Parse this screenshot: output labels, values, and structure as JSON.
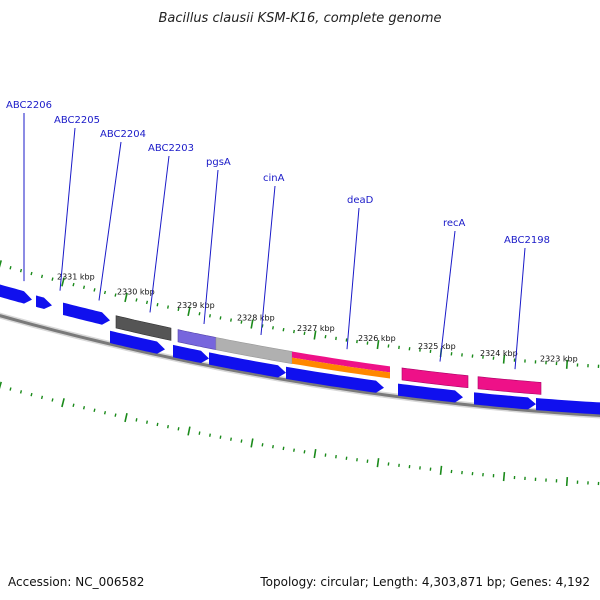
{
  "title": "Bacillus clausii KSM-K16, complete genome",
  "footer": {
    "accession": "Accession: NC_006582",
    "summary": "Topology: circular; Length: 4,303,871 bp; Genes: 4,192"
  },
  "colors": {
    "cds": "#1010ee",
    "backbone": "#7a7a7a",
    "tick": "#1a8a1a",
    "label": "#1a1ac8",
    "dark_gene": "#555555",
    "purple_gene": "#7766dd",
    "grey_gene": "#b0b0b0",
    "pink_gene": "#ee1188",
    "orange_band": "#ff8800"
  },
  "ticks": [
    "2331 kbp",
    "2330 kbp",
    "2329 kbp",
    "2328 kbp",
    "2327 kbp",
    "2326 kbp",
    "2325 kbp",
    "2324 kbp",
    "2323 kbp"
  ],
  "genes": [
    "ABC2206",
    "ABC2205",
    "ABC2204",
    "ABC2203",
    "pgsA",
    "cinA",
    "deaD",
    "recA",
    "ABC2198"
  ]
}
